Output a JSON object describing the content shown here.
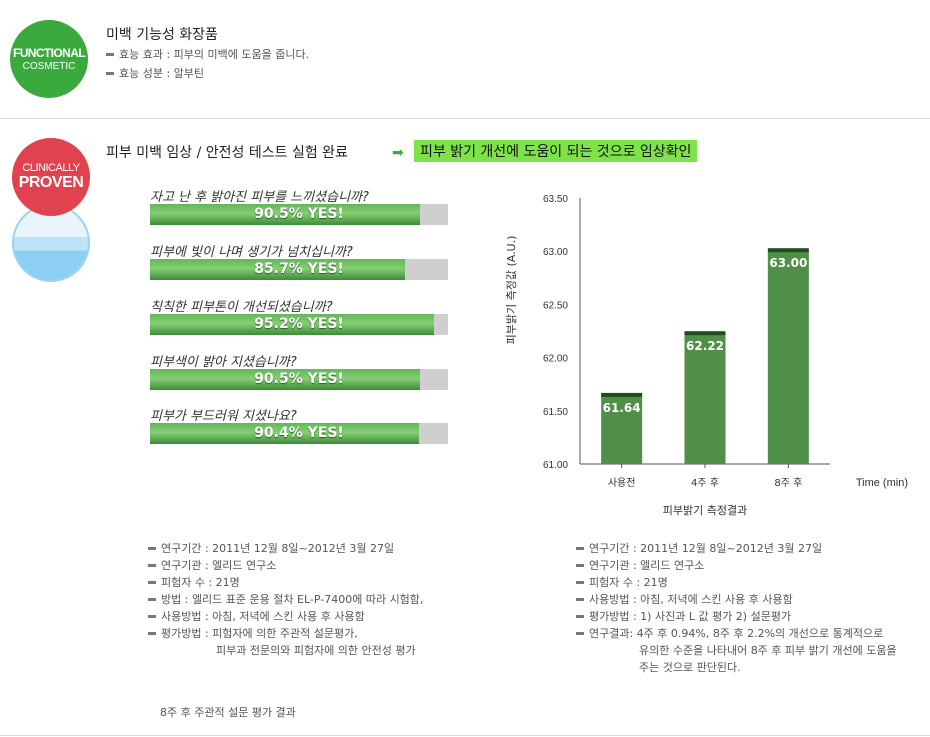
{
  "functional": {
    "badge_line1": "FUNCTIONAL",
    "badge_line2": "COSMETIC",
    "title": "미백 기능성 화장품",
    "lines": [
      "효능 효과 : 피부의 미백에 도움을 줍니다.",
      "효능 성분 : 알부틴"
    ]
  },
  "clinical": {
    "badge_line1": "CLINICALLY",
    "badge_line2": "PROVEN",
    "title": "피부 미백 임상 / 안전성 테스트 실험 완료",
    "highlight": "피부 밝기 개선에 도움이 되는 것으로 임상확인"
  },
  "survey": [
    {
      "question": "자고 난 후 밝아진 피부를 느끼셨습니까?",
      "percent": 90.5,
      "label": "90.5% YES!"
    },
    {
      "question": "피부에 빛이 나며 생기가 넘치십니까?",
      "percent": 85.7,
      "label": "85.7% YES!"
    },
    {
      "question": "칙칙한 피부톤이 개선되셨습니까?",
      "percent": 95.2,
      "label": "95.2% YES!"
    },
    {
      "question": "피부색이 밝아 지셨습니까?",
      "percent": 90.5,
      "label": "90.5% YES!"
    },
    {
      "question": "피부가 부드러워 지셨나요?",
      "percent": 90.4,
      "label": "90.4% YES!"
    }
  ],
  "chart_data": {
    "type": "bar",
    "categories": [
      "사용전",
      "4주 후",
      "8주 후"
    ],
    "values": [
      61.64,
      62.22,
      63.0
    ],
    "value_labels": [
      "61.64",
      "62.22",
      "63.00"
    ],
    "yticks": [
      "63.50",
      "63.00",
      "62.50",
      "62.00",
      "61.50",
      "61.00"
    ],
    "ylim": [
      61.0,
      63.5
    ],
    "ylabel": "피부밝기 측정값 (A.U.)",
    "xlabel": "Time (min)",
    "title": "피부밝기 측정결과",
    "bar_color": "#4f8f47",
    "bar_top_color": "#1f4d1c"
  },
  "notes_left": {
    "rows": [
      "연구기간 : 2011년 12월 8일~2012년 3월 27일",
      "연구기관 : 엘리드 연구소",
      "피험자 수 : 21명",
      "방법 : 엘리드 표준 운용 절차 EL-P-7400에 따라 시험함,",
      "사용방법 :  아침, 저녁에 스킨 사용 후 사용함",
      "평가방법 : 피험자에 의한 주관적 설문평가,"
    ],
    "continuation": "피부과 전문의와 피험자에 의한 안전성 평가",
    "caption": "8주 후 주관적 설문 평가 결과"
  },
  "notes_right": {
    "rows": [
      "연구기간 : 2011년 12월 8일~2012년 3월 27일",
      "연구기관 : 엘리드 연구소",
      "피험자 수 : 21명",
      "사용방법 : 아침, 저녁에 스킨 사용 후 사용함",
      "평가방법 : 1) 사진과 L 값 평가 2) 설문평가",
      "연구결과: 4주 후 0.94%, 8주 후 2.2%의 개선으로 통계적으로"
    ],
    "continuation1": "유의한 수준을 나타내어 8주 후 피부 밝기 개선에 도움을",
    "continuation2": "주는 것으로 판단된다."
  }
}
